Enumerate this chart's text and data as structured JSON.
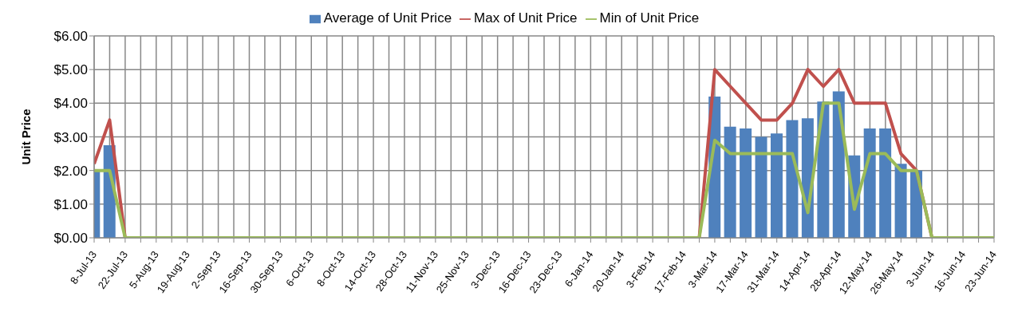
{
  "chart_data": {
    "type": "bar",
    "ylabel": "Unit Price",
    "categories": [
      "8-Jul-13",
      null,
      "22-Jul-13",
      null,
      "5-Aug-13",
      null,
      "19-Aug-13",
      null,
      "2-Sep-13",
      null,
      "16-Sep-13",
      null,
      "30-Sep-13",
      null,
      "6-Oct-13",
      null,
      "8-Oct-13",
      null,
      "14-Oct-13",
      null,
      "28-Oct-13",
      null,
      "11-Nov-13",
      null,
      "25-Nov-13",
      null,
      "3-Dec-13",
      null,
      "16-Dec-13",
      null,
      "23-Dec-13",
      null,
      "6-Jan-14",
      null,
      "20-Jan-14",
      null,
      "3-Feb-14",
      null,
      "17-Feb-14",
      null,
      "3-Mar-14",
      null,
      "17-Mar-14",
      null,
      "31-Mar-14",
      null,
      "14-Apr-14",
      null,
      "28-Apr-14",
      null,
      "12-May-14",
      null,
      "26-May-14",
      null,
      "3-Jun-14",
      null,
      "16-Jun-14",
      null,
      "23-Jun-14"
    ],
    "series": [
      {
        "name": "Average of Unit Price",
        "color": "#4f81bd",
        "values": [
          2.0,
          2.75,
          0,
          0,
          0,
          0,
          0,
          0,
          0,
          0,
          0,
          0,
          0,
          0,
          0,
          0,
          0,
          0,
          0,
          0,
          0,
          0,
          0,
          0,
          0,
          0,
          0,
          0,
          0,
          0,
          0,
          0,
          0,
          0,
          0,
          0,
          0,
          0,
          0,
          0,
          4.2,
          3.3,
          3.25,
          3.0,
          3.1,
          3.5,
          3.55,
          4.05,
          4.35,
          2.45,
          3.25,
          3.25,
          2.2,
          2.0,
          0,
          0,
          0,
          0,
          0
        ]
      },
      {
        "name": "Max of Unit Price",
        "type": "line",
        "color": "#c0504d",
        "values": [
          2.2,
          3.5,
          0,
          null,
          null,
          null,
          null,
          null,
          null,
          null,
          null,
          null,
          null,
          null,
          null,
          null,
          null,
          null,
          null,
          null,
          null,
          null,
          null,
          null,
          null,
          null,
          null,
          null,
          null,
          null,
          null,
          null,
          null,
          null,
          null,
          null,
          null,
          null,
          null,
          0,
          5.0,
          4.5,
          4.0,
          3.5,
          3.5,
          4.0,
          5.0,
          4.5,
          5.0,
          4.0,
          4.0,
          4.0,
          2.5,
          2.0,
          0,
          null,
          null,
          null,
          null
        ]
      },
      {
        "name": "Min of Unit Price",
        "type": "line",
        "color": "#9bbb59",
        "values": [
          2.0,
          2.0,
          0,
          0,
          0,
          0,
          0,
          0,
          0,
          0,
          0,
          0,
          0,
          0,
          0,
          0,
          0,
          0,
          0,
          0,
          0,
          0,
          0,
          0,
          0,
          0,
          0,
          0,
          0,
          0,
          0,
          0,
          0,
          0,
          0,
          0,
          0,
          0,
          0,
          0,
          2.9,
          2.5,
          2.5,
          2.5,
          2.5,
          2.5,
          0.75,
          4.0,
          4.0,
          0.85,
          2.5,
          2.5,
          2.0,
          2.0,
          0,
          0,
          0,
          0,
          0
        ]
      }
    ],
    "ylim": [
      0,
      6
    ],
    "yticks": [
      {
        "value": 0,
        "label": "$0.00"
      },
      {
        "value": 1,
        "label": "$1.00"
      },
      {
        "value": 2,
        "label": "$2.00"
      },
      {
        "value": 3,
        "label": "$3.00"
      },
      {
        "value": 4,
        "label": "$4.00"
      },
      {
        "value": 5,
        "label": "$5.00"
      },
      {
        "value": 6,
        "label": "$6.00"
      }
    ],
    "grid": true,
    "legend": "top",
    "marker": "none"
  }
}
